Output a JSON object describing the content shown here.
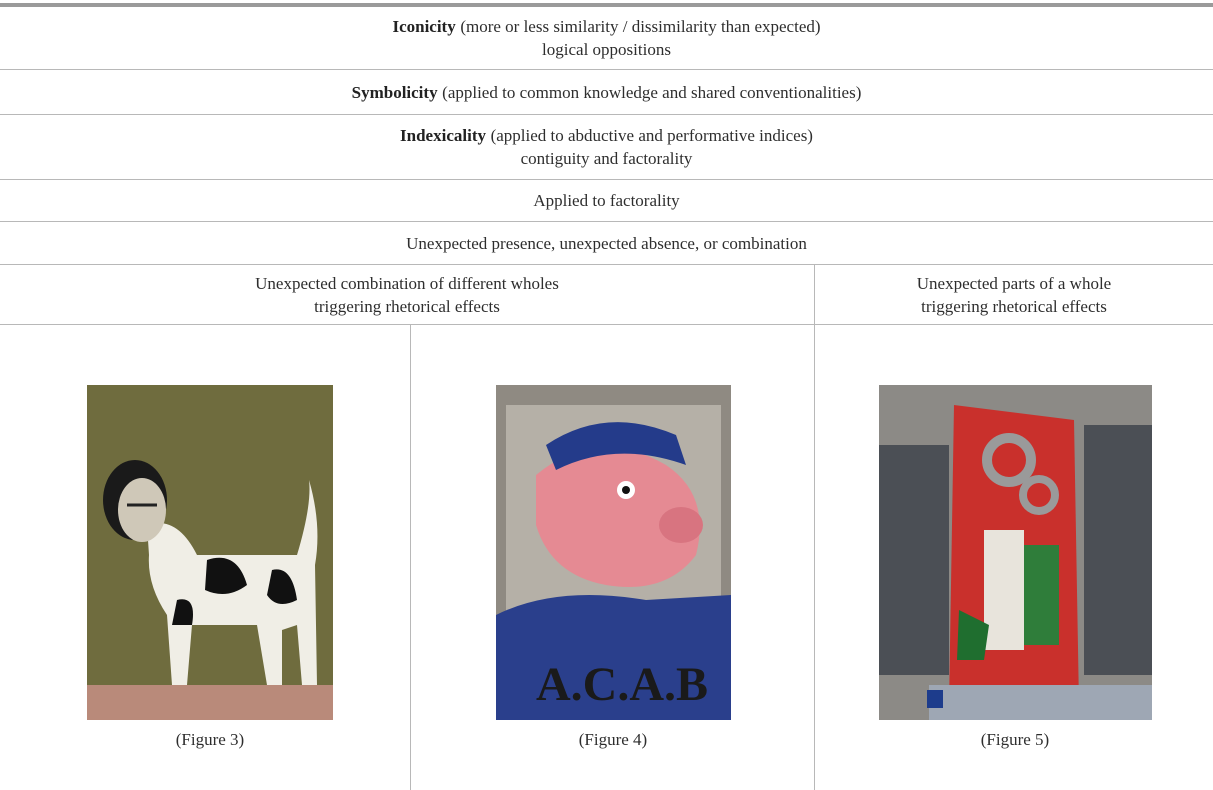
{
  "table": {
    "rows": [
      {
        "term": "Iconicity",
        "note": "(more or less similarity / dissimilarity than expected)",
        "line2": "logical oppositions"
      },
      {
        "term": "Symbolicity",
        "note": "(applied to common knowledge and shared conventionalities)"
      },
      {
        "term": "Indexicality",
        "note": "(applied to abductive and performative indices)",
        "line2": "contiguity and factorality"
      },
      {
        "text": "Applied to factorality"
      },
      {
        "text": "Unexpected presence, unexpected absence, or combination"
      }
    ],
    "columns": [
      {
        "line1": "Unexpected combination of different wholes",
        "line2": "triggering rhetorical effects"
      },
      {
        "line1": "Unexpected parts of a whole",
        "line2": "triggering rhetorical effects"
      }
    ],
    "figures": [
      {
        "caption": "(Figure 3)"
      },
      {
        "caption": "(Figure 4)"
      },
      {
        "caption": "(Figure 5)"
      }
    ]
  }
}
